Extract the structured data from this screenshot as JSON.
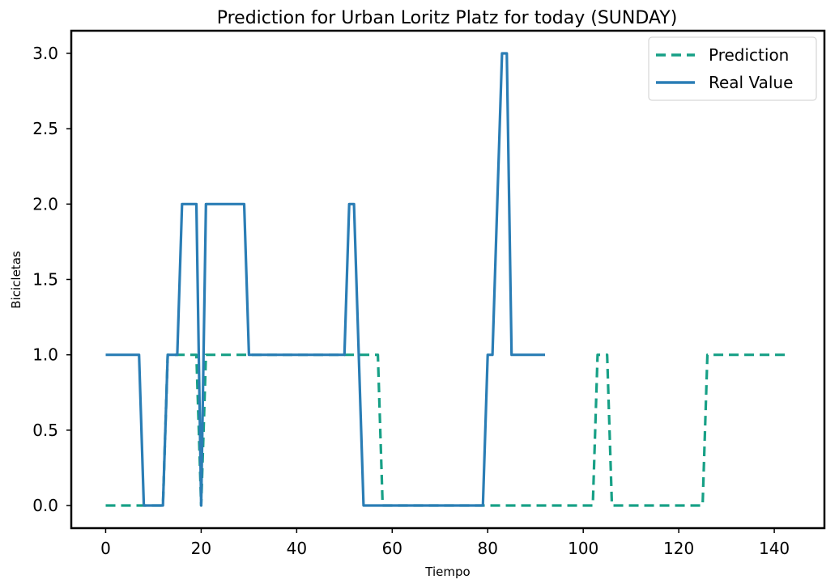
{
  "chart_data": {
    "type": "line",
    "title": "Prediction for Urban Loritz Platz for today (SUNDAY)",
    "xlabel": "Tiempo",
    "ylabel": "Bicicletas",
    "xlim": [
      -7.2,
      150.5
    ],
    "ylim": [
      -0.15,
      3.15
    ],
    "xticks": [
      0,
      20,
      40,
      60,
      80,
      100,
      120,
      140
    ],
    "yticks": [
      0.0,
      0.5,
      1.0,
      1.5,
      2.0,
      2.5,
      3.0
    ],
    "xtick_labels": [
      "0",
      "20",
      "40",
      "60",
      "80",
      "100",
      "120",
      "140"
    ],
    "ytick_labels": [
      "0.0",
      "0.5",
      "1.0",
      "1.5",
      "2.0",
      "2.5",
      "3.0"
    ],
    "grid": false,
    "legend_position": "top-right",
    "series": [
      {
        "name": "Prediction",
        "style": "dashed",
        "color": "#17a086",
        "x": [
          0,
          12,
          13,
          19,
          19.5,
          20,
          20.5,
          21,
          57,
          58,
          102,
          103,
          105,
          106,
          125,
          126,
          143
        ],
        "y": [
          0,
          0,
          1,
          1,
          0.5,
          0,
          0.5,
          1,
          1,
          0,
          0,
          1,
          1,
          0,
          0,
          1,
          1
        ]
      },
      {
        "name": "Real Value",
        "style": "solid",
        "color": "#2a7db5",
        "x": [
          0,
          7,
          8,
          12,
          13,
          15,
          16,
          19,
          20,
          21,
          29,
          30,
          50,
          51,
          52,
          54,
          79,
          80,
          81,
          83,
          84,
          85,
          92
        ],
        "y": [
          1,
          1,
          0,
          0,
          1,
          1,
          2,
          2,
          0,
          2,
          2,
          1,
          1,
          2,
          2,
          0,
          0,
          1,
          1,
          3,
          3,
          1,
          1
        ]
      }
    ]
  }
}
